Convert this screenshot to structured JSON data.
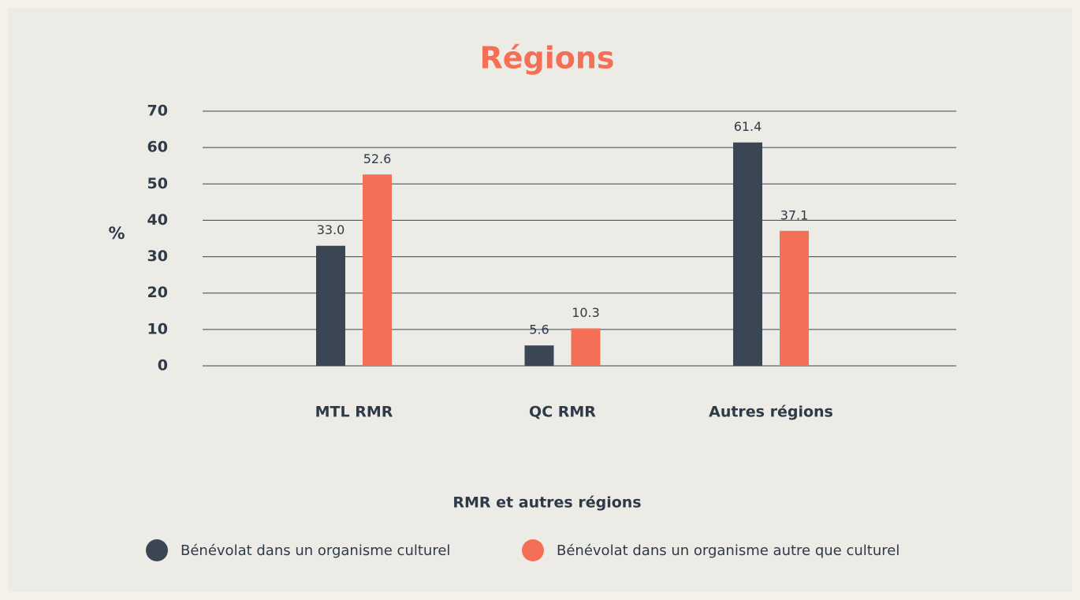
{
  "chart_data": {
    "type": "bar",
    "title": "Régions",
    "y_label": "%",
    "x_label": "RMR et autres régions",
    "categories": [
      "MTL RMR",
      "QC RMR",
      "Autres régions"
    ],
    "series": [
      {
        "name": "Bénévolat dans un organisme culturel",
        "color": "#3a4654",
        "values": [
          33.0,
          5.6,
          61.4
        ],
        "value_labels": [
          "33.0",
          "5.6",
          "61.4"
        ]
      },
      {
        "name": "Bénévolat dans un organisme autre que culturel",
        "color": "#f46f55",
        "values": [
          52.6,
          10.3,
          37.1
        ],
        "value_labels": [
          "52.6",
          "10.3",
          "37.1"
        ]
      }
    ],
    "ylim": [
      0,
      70
    ],
    "yticks": [
      0,
      10,
      20,
      30,
      40,
      50,
      60,
      70
    ],
    "grid": true,
    "legend": "bottom"
  }
}
